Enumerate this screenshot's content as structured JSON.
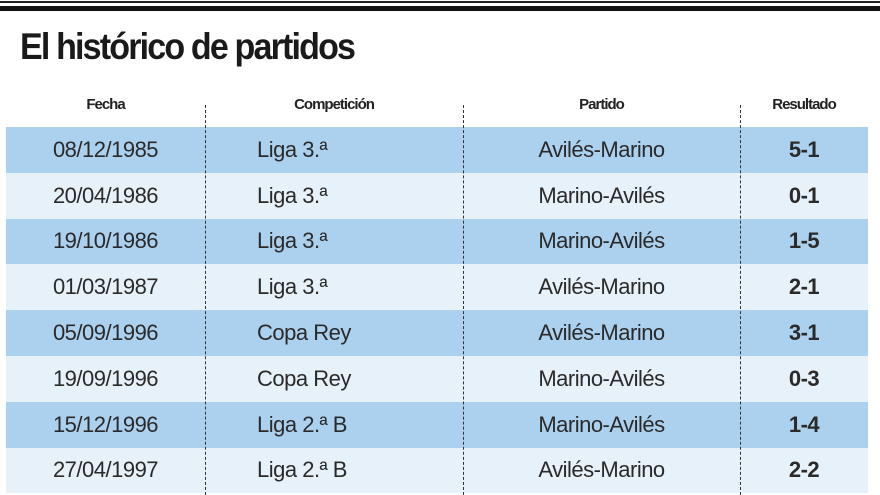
{
  "title": "El histórico de partidos",
  "headers": [
    "Fecha",
    "Competición",
    "Partido",
    "Resultado"
  ],
  "rows": [
    [
      "08/12/1985",
      "Liga 3.ª",
      "Avilés-Marino",
      "5-1"
    ],
    [
      "20/04/1986",
      "Liga 3.ª",
      "Marino-Avilés",
      "0-1"
    ],
    [
      "19/10/1986",
      "Liga 3.ª",
      "Marino-Avilés",
      "1-5"
    ],
    [
      "01/03/1987",
      "Liga 3.ª",
      "Avilés-Marino",
      "2-1"
    ],
    [
      "05/09/1996",
      "Copa Rey",
      "Avilés-Marino",
      "3-1"
    ],
    [
      "19/09/1996",
      "Copa Rey",
      "Marino-Avilés",
      "0-3"
    ],
    [
      "15/12/1996",
      "Liga 2.ª B",
      "Marino-Avilés",
      "1-4"
    ],
    [
      "27/04/1997",
      "Liga 2.ª B",
      "Avilés-Marino",
      "2-2"
    ]
  ],
  "colors": {
    "row_dark": "#acd1ef",
    "row_light": "#e7f1fa"
  }
}
